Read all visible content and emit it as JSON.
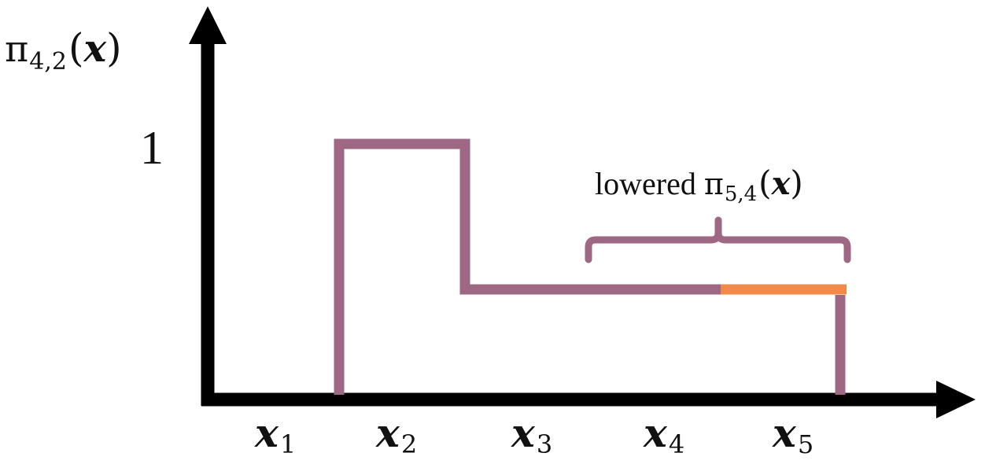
{
  "diagram": {
    "y_axis_label": {
      "symbol": "π",
      "subscript": "4,2",
      "open_paren": "(",
      "arg": "x",
      "close_paren": ")"
    },
    "y_tick_label": "1",
    "x_labels": [
      {
        "base": "x",
        "sub": "1"
      },
      {
        "base": "x",
        "sub": "2"
      },
      {
        "base": "x",
        "sub": "3"
      },
      {
        "base": "x",
        "sub": "4"
      },
      {
        "base": "x",
        "sub": "5"
      }
    ],
    "annotation": {
      "word": "lowered",
      "symbol": "π",
      "subscript": "5,4",
      "open_paren": "(",
      "arg": "x",
      "close_paren": ")"
    },
    "colors": {
      "axis": "#000000",
      "curve": "#9e6784",
      "lowered_segment": "#f0894a",
      "brace": "#9e6784"
    }
  }
}
